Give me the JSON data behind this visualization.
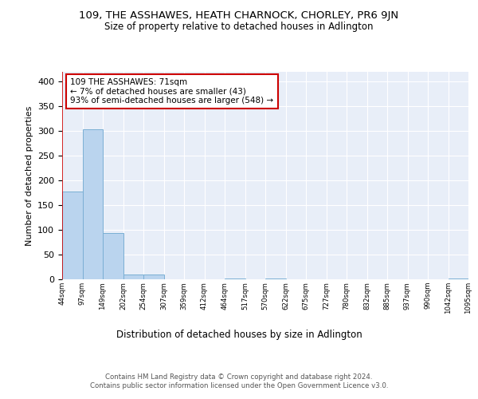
{
  "title": "109, THE ASSHAWES, HEATH CHARNOCK, CHORLEY, PR6 9JN",
  "subtitle": "Size of property relative to detached houses in Adlington",
  "xlabel": "Distribution of detached houses by size in Adlington",
  "ylabel": "Number of detached properties",
  "bar_values": [
    178,
    304,
    93,
    10,
    10,
    0,
    0,
    0,
    2,
    0,
    2,
    0,
    0,
    0,
    0,
    0,
    0,
    0,
    0,
    2
  ],
  "bar_labels": [
    "44sqm",
    "97sqm",
    "149sqm",
    "202sqm",
    "254sqm",
    "307sqm",
    "359sqm",
    "412sqm",
    "464sqm",
    "517sqm",
    "570sqm",
    "622sqm",
    "675sqm",
    "727sqm",
    "780sqm",
    "832sqm",
    "885sqm",
    "937sqm",
    "990sqm",
    "1042sqm",
    "1095sqm"
  ],
  "bar_color": "#bad4ee",
  "bar_edge_color": "#7aafd4",
  "annotation_box_text": "109 THE ASSHAWES: 71sqm\n← 7% of detached houses are smaller (43)\n93% of semi-detached houses are larger (548) →",
  "annotation_box_color": "#ffffff",
  "annotation_box_edge_color": "#cc0000",
  "vline_color": "#cc0000",
  "background_color": "#e8eef8",
  "grid_color": "#ffffff",
  "fig_background": "#ffffff",
  "ylim": [
    0,
    420
  ],
  "yticks": [
    0,
    50,
    100,
    150,
    200,
    250,
    300,
    350,
    400
  ],
  "footer_text": "Contains HM Land Registry data © Crown copyright and database right 2024.\nContains public sector information licensed under the Open Government Licence v3.0.",
  "num_bars": 20
}
